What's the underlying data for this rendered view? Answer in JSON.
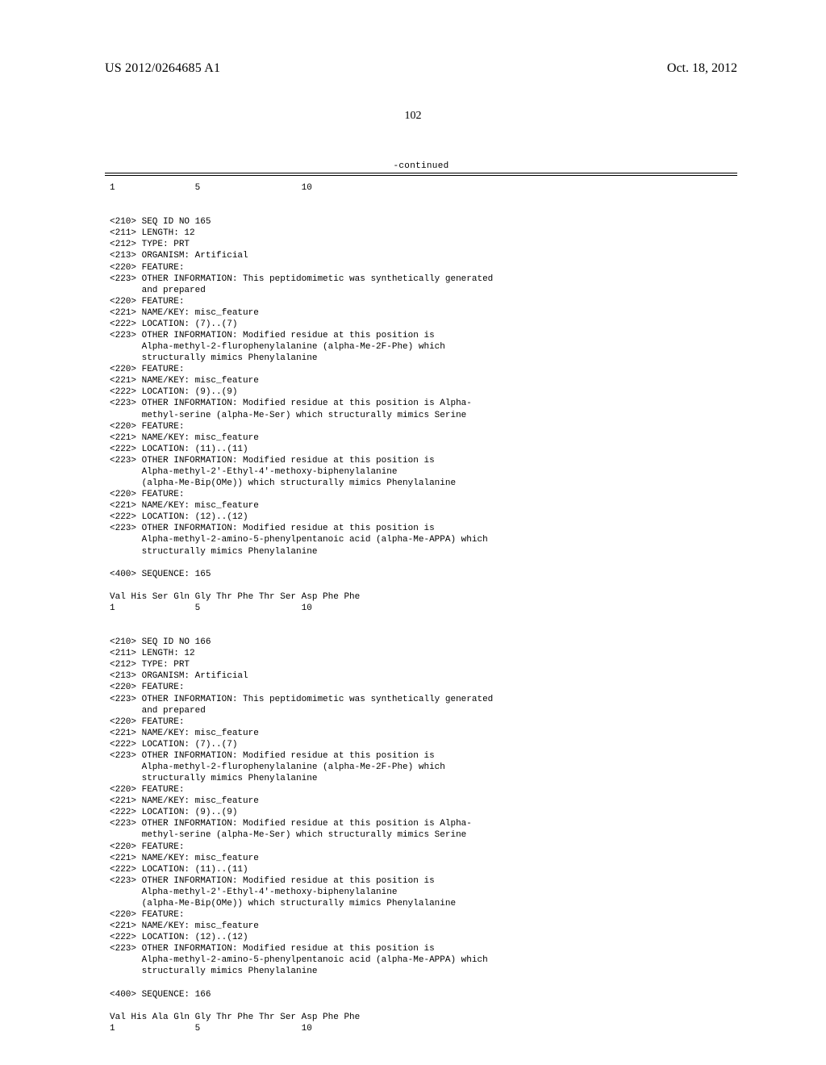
{
  "header": {
    "pub_number": "US 2012/0264685 A1",
    "pub_date": "Oct. 18, 2012",
    "page_number": "102",
    "continued_label": "-continued"
  },
  "leading": {
    "ruler": "1               5                   10"
  },
  "entries": [
    {
      "tags": [
        "<210> SEQ ID NO 165",
        "<211> LENGTH: 12",
        "<212> TYPE: PRT",
        "<213> ORGANISM: Artificial",
        "<220> FEATURE:",
        "<223> OTHER INFORMATION: This peptidomimetic was synthetically generated",
        "      and prepared",
        "<220> FEATURE:",
        "<221> NAME/KEY: misc_feature",
        "<222> LOCATION: (7)..(7)",
        "<223> OTHER INFORMATION: Modified residue at this position is",
        "      Alpha-methyl-2-flurophenylalanine (alpha-Me-2F-Phe) which",
        "      structurally mimics Phenylalanine",
        "<220> FEATURE:",
        "<221> NAME/KEY: misc_feature",
        "<222> LOCATION: (9)..(9)",
        "<223> OTHER INFORMATION: Modified residue at this position is Alpha-",
        "      methyl-serine (alpha-Me-Ser) which structurally mimics Serine",
        "<220> FEATURE:",
        "<221> NAME/KEY: misc_feature",
        "<222> LOCATION: (11)..(11)",
        "<223> OTHER INFORMATION: Modified residue at this position is",
        "      Alpha-methyl-2'-Ethyl-4'-methoxy-biphenylalanine",
        "      (alpha-Me-Bip(OMe)) which structurally mimics Phenylalanine",
        "<220> FEATURE:",
        "<221> NAME/KEY: misc_feature",
        "<222> LOCATION: (12)..(12)",
        "<223> OTHER INFORMATION: Modified residue at this position is",
        "      Alpha-methyl-2-amino-5-phenylpentanoic acid (alpha-Me-APPA) which",
        "      structurally mimics Phenylalanine"
      ],
      "seq_header": "<400> SEQUENCE: 165",
      "seq_line": "Val His Ser Gln Gly Thr Phe Thr Ser Asp Phe Phe",
      "ruler": "1               5                   10"
    },
    {
      "tags": [
        "<210> SEQ ID NO 166",
        "<211> LENGTH: 12",
        "<212> TYPE: PRT",
        "<213> ORGANISM: Artificial",
        "<220> FEATURE:",
        "<223> OTHER INFORMATION: This peptidomimetic was synthetically generated",
        "      and prepared",
        "<220> FEATURE:",
        "<221> NAME/KEY: misc_feature",
        "<222> LOCATION: (7)..(7)",
        "<223> OTHER INFORMATION: Modified residue at this position is",
        "      Alpha-methyl-2-flurophenylalanine (alpha-Me-2F-Phe) which",
        "      structurally mimics Phenylalanine",
        "<220> FEATURE:",
        "<221> NAME/KEY: misc_feature",
        "<222> LOCATION: (9)..(9)",
        "<223> OTHER INFORMATION: Modified residue at this position is Alpha-",
        "      methyl-serine (alpha-Me-Ser) which structurally mimics Serine",
        "<220> FEATURE:",
        "<221> NAME/KEY: misc_feature",
        "<222> LOCATION: (11)..(11)",
        "<223> OTHER INFORMATION: Modified residue at this position is",
        "      Alpha-methyl-2'-Ethyl-4'-methoxy-biphenylalanine",
        "      (alpha-Me-Bip(OMe)) which structurally mimics Phenylalanine",
        "<220> FEATURE:",
        "<221> NAME/KEY: misc_feature",
        "<222> LOCATION: (12)..(12)",
        "<223> OTHER INFORMATION: Modified residue at this position is",
        "      Alpha-methyl-2-amino-5-phenylpentanoic acid (alpha-Me-APPA) which",
        "      structurally mimics Phenylalanine"
      ],
      "seq_header": "<400> SEQUENCE: 166",
      "seq_line": "Val His Ala Gln Gly Thr Phe Thr Ser Asp Phe Phe",
      "ruler": "1               5                   10"
    }
  ]
}
